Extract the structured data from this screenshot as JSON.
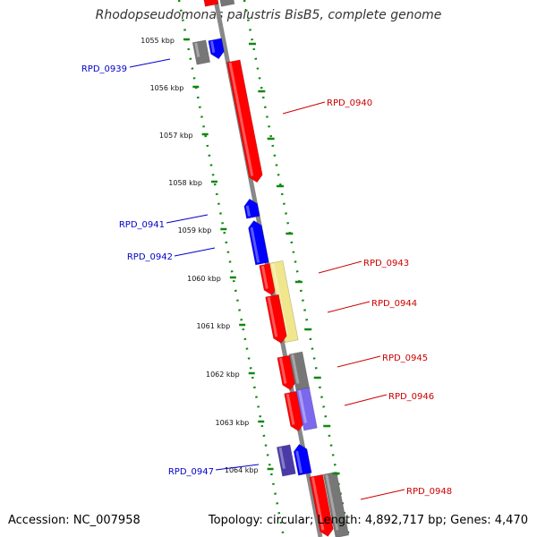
{
  "title": "Rhodopseudomonas palustris BisB5, complete genome",
  "accession": "Accession: NC_007958",
  "topology": "Topology: circular; Length: 4,892,717 bp; Genes: 4,470",
  "ticks": [
    {
      "label": "1055 kbp"
    },
    {
      "label": "1056 kbp"
    },
    {
      "label": "1057 kbp"
    },
    {
      "label": "1058 kbp"
    },
    {
      "label": "1059 kbp"
    },
    {
      "label": "1060 kbp"
    },
    {
      "label": "1061 kbp"
    },
    {
      "label": "1062 kbp"
    },
    {
      "label": "1063 kbp"
    },
    {
      "label": "1064 kbp"
    }
  ],
  "gene_labels": [
    {
      "name": "RPD_0939",
      "color": "#0000cc"
    },
    {
      "name": "RPD_0940",
      "color": "#cc0000"
    },
    {
      "name": "RPD_0941",
      "color": "#0000cc"
    },
    {
      "name": "RPD_0942",
      "color": "#0000cc"
    },
    {
      "name": "RPD_0943",
      "color": "#cc0000"
    },
    {
      "name": "RPD_0944",
      "color": "#cc0000"
    },
    {
      "name": "RPD_0945",
      "color": "#cc0000"
    },
    {
      "name": "RPD_0946",
      "color": "#cc0000"
    },
    {
      "name": "RPD_0947",
      "color": "#0000cc"
    },
    {
      "name": "RPD_0948",
      "color": "#cc0000"
    }
  ],
  "colors": {
    "backbone": "#888888",
    "tick": "#118811",
    "forward_gene": "#ff0000",
    "reverse_gene": "#0000ff",
    "grey_gene": "#777777",
    "yellow_gene": "#f0e68c",
    "purple_gene": "#7b68ee",
    "navy_gene": "#4a3aa8"
  }
}
